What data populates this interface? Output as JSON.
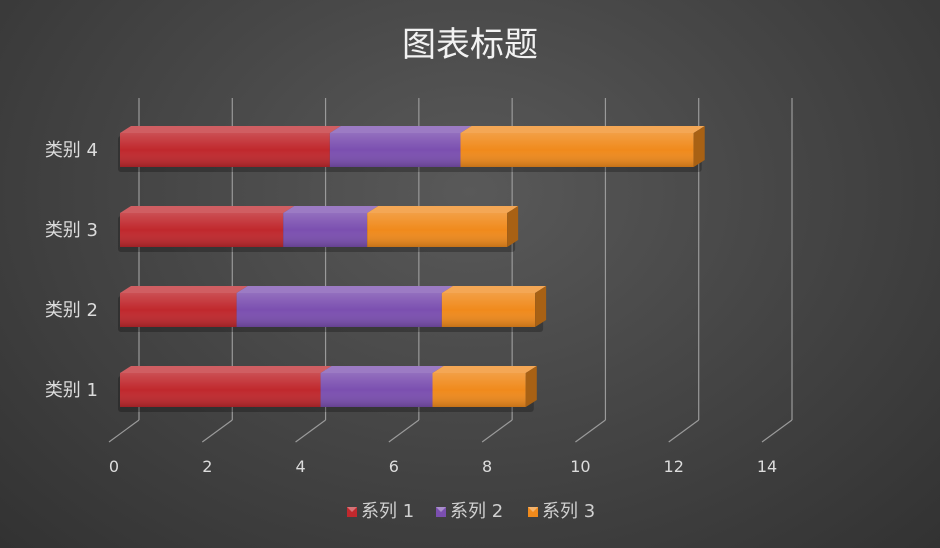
{
  "chart_data": {
    "type": "bar",
    "orientation": "horizontal",
    "stacked": true,
    "three_d": true,
    "title": "图表标题",
    "categories": [
      "类别 1",
      "类别 2",
      "类别 3",
      "类别 4"
    ],
    "series": [
      {
        "name": "系列 1",
        "values": [
          4.3,
          2.5,
          3.5,
          4.5
        ],
        "color": "#c0282d"
      },
      {
        "name": "系列 2",
        "values": [
          2.4,
          4.4,
          1.8,
          2.8
        ],
        "color": "#7b4fb0"
      },
      {
        "name": "系列 3",
        "values": [
          2.0,
          2.0,
          3.0,
          5.0
        ],
        "color": "#f08a1c"
      }
    ],
    "xlim": [
      0,
      14
    ],
    "xticks": [
      "0",
      "2",
      "4",
      "6",
      "8",
      "10",
      "12",
      "14"
    ],
    "grid": true,
    "legend_position": "bottom"
  }
}
